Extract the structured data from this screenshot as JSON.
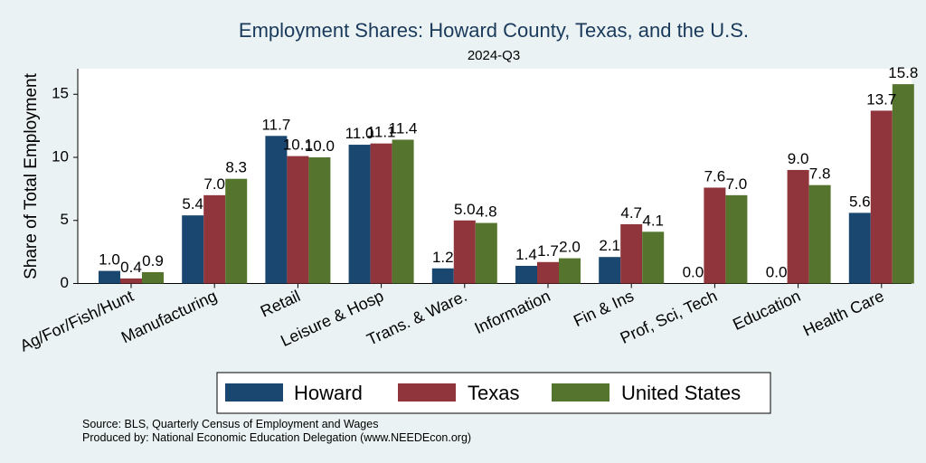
{
  "chart_data": {
    "type": "bar",
    "title": "Employment Shares: Howard County, Texas, and the U.S.",
    "subtitle": "2024-Q3",
    "ylabel": "Share of Total Employment",
    "xlabel": "",
    "ylim": [
      0,
      17
    ],
    "yticks": [
      0,
      5,
      10,
      15
    ],
    "categories": [
      "Ag/For/Fish/Hunt",
      "Manufacturing",
      "Retail",
      "Leisure & Hosp",
      "Trans. & Ware.",
      "Information",
      "Fin & Ins",
      "Prof, Sci, Tech",
      "Education",
      "Health Care"
    ],
    "series": [
      {
        "name": "Howard",
        "color": "#1a476f",
        "values": [
          1.0,
          5.4,
          11.7,
          11.0,
          1.2,
          1.4,
          2.1,
          0.0,
          0.0,
          5.6
        ],
        "labels": [
          "1.0",
          "5.4",
          "11.7",
          "11.0",
          "1.2",
          "1.4",
          "2.1",
          "0.0",
          "0.0",
          "5.6"
        ]
      },
      {
        "name": "Texas",
        "color": "#90353b",
        "values": [
          0.4,
          7.0,
          10.1,
          11.1,
          5.0,
          1.7,
          4.7,
          7.6,
          9.0,
          13.7
        ],
        "labels": [
          "0.4",
          "7.0",
          "10.1",
          "11.1",
          "5.0",
          "1.7",
          "4.7",
          "7.6",
          "9.0",
          "13.7"
        ]
      },
      {
        "name": "United States",
        "color": "#55752f",
        "values": [
          0.9,
          8.3,
          10.0,
          11.4,
          4.8,
          2.0,
          4.1,
          7.0,
          7.8,
          15.8
        ],
        "labels": [
          "0.9",
          "8.3",
          "10.0",
          "11.4",
          "4.8",
          "2.0",
          "4.1",
          "7.0",
          "7.8",
          "15.8"
        ]
      }
    ],
    "grid": false,
    "legend_position": "bottom",
    "notes": [
      "Source: BLS, Quarterly Census of Employment and Wages",
      "Produced by: National Economic Education Delegation (www.NEEDEcon.org)"
    ]
  }
}
